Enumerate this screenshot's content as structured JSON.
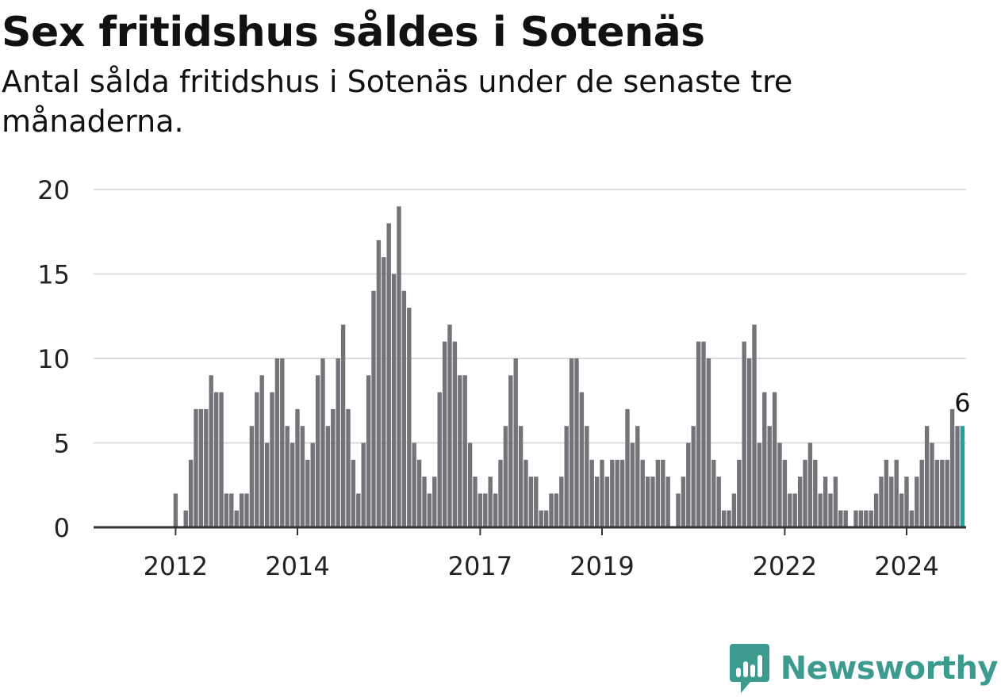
{
  "title": "Sex fritidshus såldes i Sotenäs",
  "subtitle": "Antal sålda fritidshus i Sotenäs under de senaste tre månaderna.",
  "brand": {
    "name": "Newsworthy",
    "icon": "newsworthy-logo-icon",
    "color": "#3d9a8f"
  },
  "chart_data": {
    "type": "bar",
    "title": "Sex fritidshus såldes i Sotenäs",
    "subtitle": "Antal sålda fritidshus i Sotenäs under de senaste tre månaderna.",
    "xlabel": "",
    "ylabel": "",
    "ylim": [
      0,
      20
    ],
    "y_ticks": [
      0,
      5,
      10,
      15,
      20
    ],
    "grid": true,
    "x_ticks": [
      {
        "label": "2012",
        "index": 8
      },
      {
        "label": "2014",
        "index": 32
      },
      {
        "label": "2017",
        "index": 68
      },
      {
        "label": "2019",
        "index": 92
      },
      {
        "label": "2022",
        "index": 128
      },
      {
        "label": "2024",
        "index": 152
      }
    ],
    "start_label": "2011",
    "interval": "monthly, rolling three-month totals",
    "bar_color": "#74737a",
    "highlight_color": "#1ba39c",
    "highlight_label": "6",
    "values": [
      0,
      0,
      0,
      0,
      0,
      0,
      0,
      0,
      2,
      0,
      1,
      4,
      7,
      7,
      7,
      9,
      8,
      8,
      2,
      2,
      1,
      2,
      2,
      6,
      8,
      9,
      5,
      8,
      10,
      10,
      6,
      5,
      7,
      6,
      4,
      5,
      9,
      10,
      6,
      7,
      10,
      12,
      7,
      4,
      2,
      5,
      9,
      14,
      17,
      16,
      18,
      15,
      19,
      14,
      13,
      5,
      4,
      3,
      2,
      3,
      8,
      11,
      12,
      11,
      9,
      9,
      5,
      3,
      2,
      2,
      3,
      2,
      4,
      6,
      9,
      10,
      6,
      4,
      3,
      3,
      1,
      1,
      2,
      2,
      3,
      6,
      10,
      10,
      8,
      6,
      4,
      3,
      4,
      3,
      4,
      4,
      4,
      7,
      5,
      6,
      4,
      3,
      3,
      4,
      4,
      3,
      0,
      2,
      3,
      5,
      6,
      11,
      11,
      10,
      4,
      3,
      1,
      1,
      2,
      4,
      11,
      10,
      12,
      5,
      8,
      6,
      8,
      5,
      4,
      2,
      2,
      3,
      4,
      5,
      4,
      2,
      3,
      2,
      3,
      1,
      1,
      0,
      1,
      1,
      1,
      1,
      2,
      3,
      4,
      3,
      4,
      2,
      3,
      1,
      3,
      4,
      6,
      5,
      4,
      4,
      4,
      7,
      6,
      6
    ]
  }
}
